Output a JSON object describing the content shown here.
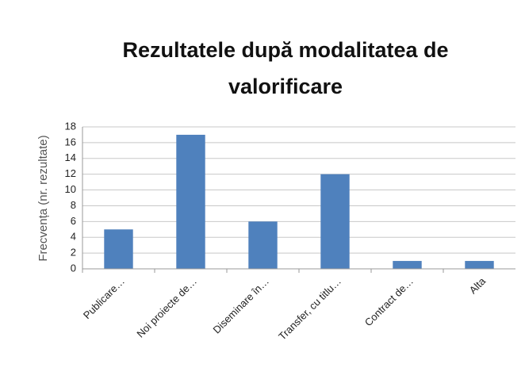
{
  "chart_data": {
    "type": "bar",
    "title": "Rezultatele după modalitatea de valorificare",
    "y_label": "Frecvența (nr. rezultate)",
    "categories": [
      "Publicare…",
      "Noi proiecte de…",
      "Diseminare în…",
      "Transfer, cu titlu…",
      "Contract de…",
      "Alta"
    ],
    "values": [
      5,
      17,
      6,
      12,
      1,
      1
    ],
    "color": "#4f81bd",
    "ylim": [
      0,
      18
    ],
    "yticks": [
      0,
      2,
      4,
      6,
      8,
      10,
      12,
      14,
      16,
      18
    ],
    "grid": true
  }
}
